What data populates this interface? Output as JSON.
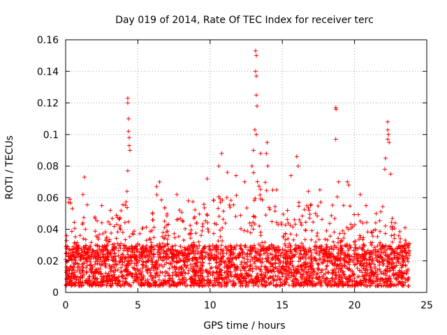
{
  "chart_data": {
    "type": "scatter",
    "title": "Day 019 of 2014, Rate Of TEC Index for receiver terc",
    "xlabel": "GPS time / hours",
    "ylabel": "ROTI / TECUs",
    "xlim": [
      0,
      25
    ],
    "ylim": [
      0,
      0.16
    ],
    "grid": true,
    "x_ticks": [
      0,
      5,
      10,
      15,
      20,
      25
    ],
    "x_tick_labels": [
      "0",
      "5",
      "10",
      "15",
      "20",
      "25"
    ],
    "y_ticks": [
      0,
      0.02,
      0.04,
      0.06,
      0.08,
      0.1,
      0.12,
      0.14,
      0.16
    ],
    "y_tick_labels": [
      "0",
      "0.02",
      "0.04",
      "0.06",
      "0.08",
      "0.1",
      "0.12",
      "0.14",
      "0.16"
    ],
    "marker": "+",
    "marker_color": "#ff0000",
    "time_span_hours": [
      0,
      23.8
    ],
    "series": [
      {
        "name": "ROTI",
        "baseline_range": [
          0.004,
          0.03
        ],
        "notable_points": [
          {
            "x": 0.2,
            "y": 0.057
          },
          {
            "x": 0.3,
            "y": 0.059
          },
          {
            "x": 1.2,
            "y": 0.062
          },
          {
            "x": 1.3,
            "y": 0.073
          },
          {
            "x": 2.5,
            "y": 0.055
          },
          {
            "x": 3.1,
            "y": 0.052
          },
          {
            "x": 4.3,
            "y": 0.123
          },
          {
            "x": 4.3,
            "y": 0.12
          },
          {
            "x": 4.35,
            "y": 0.11
          },
          {
            "x": 4.35,
            "y": 0.102
          },
          {
            "x": 4.4,
            "y": 0.098
          },
          {
            "x": 4.4,
            "y": 0.093
          },
          {
            "x": 4.45,
            "y": 0.09
          },
          {
            "x": 4.3,
            "y": 0.077
          },
          {
            "x": 4.25,
            "y": 0.064
          },
          {
            "x": 6.5,
            "y": 0.07
          },
          {
            "x": 6.3,
            "y": 0.067
          },
          {
            "x": 7.7,
            "y": 0.062
          },
          {
            "x": 8.5,
            "y": 0.058
          },
          {
            "x": 9.8,
            "y": 0.072
          },
          {
            "x": 10.6,
            "y": 0.08
          },
          {
            "x": 10.8,
            "y": 0.088
          },
          {
            "x": 11.2,
            "y": 0.076
          },
          {
            "x": 11.8,
            "y": 0.074
          },
          {
            "x": 12.4,
            "y": 0.07
          },
          {
            "x": 12.9,
            "y": 0.08
          },
          {
            "x": 13.15,
            "y": 0.153
          },
          {
            "x": 13.2,
            "y": 0.15
          },
          {
            "x": 13.15,
            "y": 0.14
          },
          {
            "x": 13.2,
            "y": 0.137
          },
          {
            "x": 13.2,
            "y": 0.125
          },
          {
            "x": 13.25,
            "y": 0.118
          },
          {
            "x": 13.1,
            "y": 0.103
          },
          {
            "x": 13.2,
            "y": 0.1
          },
          {
            "x": 13.0,
            "y": 0.09
          },
          {
            "x": 13.5,
            "y": 0.088
          },
          {
            "x": 13.95,
            "y": 0.095
          },
          {
            "x": 13.9,
            "y": 0.088
          },
          {
            "x": 14.0,
            "y": 0.08
          },
          {
            "x": 14.6,
            "y": 0.065
          },
          {
            "x": 15.6,
            "y": 0.074
          },
          {
            "x": 16.0,
            "y": 0.086
          },
          {
            "x": 16.1,
            "y": 0.08
          },
          {
            "x": 16.8,
            "y": 0.064
          },
          {
            "x": 17.6,
            "y": 0.065
          },
          {
            "x": 18.7,
            "y": 0.117
          },
          {
            "x": 18.72,
            "y": 0.116
          },
          {
            "x": 18.7,
            "y": 0.097
          },
          {
            "x": 18.9,
            "y": 0.07
          },
          {
            "x": 19.5,
            "y": 0.07
          },
          {
            "x": 19.6,
            "y": 0.068
          },
          {
            "x": 20.4,
            "y": 0.062
          },
          {
            "x": 20.8,
            "y": 0.055
          },
          {
            "x": 21.5,
            "y": 0.05
          },
          {
            "x": 22.1,
            "y": 0.078
          },
          {
            "x": 22.15,
            "y": 0.085
          },
          {
            "x": 22.3,
            "y": 0.108
          },
          {
            "x": 22.3,
            "y": 0.103
          },
          {
            "x": 22.35,
            "y": 0.1
          },
          {
            "x": 22.3,
            "y": 0.097
          },
          {
            "x": 22.4,
            "y": 0.095
          },
          {
            "x": 22.5,
            "y": 0.075
          },
          {
            "x": 23.5,
            "y": 0.041
          }
        ],
        "envelope": [
          [
            0.0,
            0.035
          ],
          [
            0.3,
            0.06
          ],
          [
            0.8,
            0.045
          ],
          [
            1.3,
            0.062
          ],
          [
            1.8,
            0.045
          ],
          [
            2.5,
            0.055
          ],
          [
            3.0,
            0.045
          ],
          [
            3.5,
            0.05
          ],
          [
            4.3,
            0.065
          ],
          [
            4.8,
            0.045
          ],
          [
            5.3,
            0.045
          ],
          [
            5.8,
            0.04
          ],
          [
            6.4,
            0.068
          ],
          [
            7.0,
            0.05
          ],
          [
            7.5,
            0.06
          ],
          [
            8.2,
            0.055
          ],
          [
            8.8,
            0.06
          ],
          [
            9.5,
            0.058
          ],
          [
            10.1,
            0.06
          ],
          [
            10.7,
            0.07
          ],
          [
            11.3,
            0.06
          ],
          [
            11.9,
            0.062
          ],
          [
            12.5,
            0.06
          ],
          [
            13.1,
            0.08
          ],
          [
            13.6,
            0.07
          ],
          [
            14.1,
            0.075
          ],
          [
            14.6,
            0.055
          ],
          [
            15.2,
            0.05
          ],
          [
            15.8,
            0.06
          ],
          [
            16.3,
            0.06
          ],
          [
            16.9,
            0.055
          ],
          [
            17.5,
            0.06
          ],
          [
            18.1,
            0.05
          ],
          [
            18.7,
            0.065
          ],
          [
            19.3,
            0.055
          ],
          [
            19.8,
            0.055
          ],
          [
            20.3,
            0.05
          ],
          [
            20.9,
            0.045
          ],
          [
            21.5,
            0.045
          ],
          [
            22.1,
            0.06
          ],
          [
            22.6,
            0.05
          ],
          [
            23.1,
            0.04
          ],
          [
            23.6,
            0.035
          ]
        ]
      }
    ]
  }
}
